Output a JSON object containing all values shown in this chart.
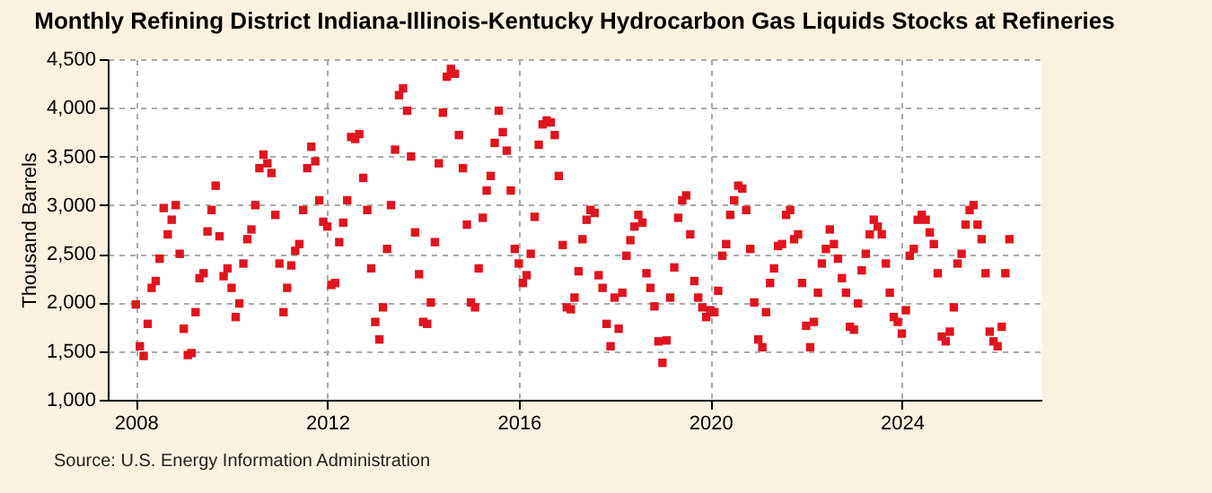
{
  "chart_data": {
    "type": "scatter",
    "title": "Monthly Refining District Indiana-Illinois-Kentucky Hydrocarbon Gas Liquids Stocks at Refineries",
    "ylabel": "Thousand Barrels",
    "annotations": [
      "Source: U.S. Energy Information Administration"
    ],
    "marker": "square",
    "grid": true,
    "xlim": [
      "2007-06",
      "2026-12"
    ],
    "xticks": [
      "2008",
      "2012",
      "2016",
      "2020",
      "2024"
    ],
    "ylim": [
      1000,
      4500
    ],
    "yticks": [
      {
        "value": 1000,
        "label": "1,000"
      },
      {
        "value": 1500,
        "label": "1,500"
      },
      {
        "value": 2000,
        "label": "2,000"
      },
      {
        "value": 2500,
        "label": "2,500"
      },
      {
        "value": 3000,
        "label": "3,000"
      },
      {
        "value": 3500,
        "label": "3,500"
      },
      {
        "value": 4000,
        "label": "4,000"
      },
      {
        "value": 4500,
        "label": "4,500"
      }
    ],
    "x": [
      "2008-01",
      "2008-02",
      "2008-03",
      "2008-04",
      "2008-05",
      "2008-06",
      "2008-07",
      "2008-08",
      "2008-09",
      "2008-10",
      "2008-11",
      "2008-12",
      "2009-01",
      "2009-02",
      "2009-03",
      "2009-04",
      "2009-05",
      "2009-06",
      "2009-07",
      "2009-08",
      "2009-09",
      "2009-10",
      "2009-11",
      "2009-12",
      "2010-01",
      "2010-02",
      "2010-03",
      "2010-04",
      "2010-05",
      "2010-06",
      "2010-07",
      "2010-08",
      "2010-09",
      "2010-10",
      "2010-11",
      "2010-12",
      "2011-01",
      "2011-02",
      "2011-03",
      "2011-04",
      "2011-05",
      "2011-06",
      "2011-07",
      "2011-08",
      "2011-09",
      "2011-10",
      "2011-11",
      "2011-12",
      "2012-01",
      "2012-02",
      "2012-03",
      "2012-04",
      "2012-05",
      "2012-06",
      "2012-07",
      "2012-08",
      "2012-09",
      "2012-10",
      "2012-11",
      "2012-12",
      "2013-01",
      "2013-02",
      "2013-03",
      "2013-04",
      "2013-05",
      "2013-06",
      "2013-07",
      "2013-08",
      "2013-09",
      "2013-10",
      "2013-11",
      "2013-12",
      "2014-01",
      "2014-02",
      "2014-03",
      "2014-04",
      "2014-05",
      "2014-06",
      "2014-07",
      "2014-08",
      "2014-09",
      "2014-10",
      "2014-11",
      "2014-12",
      "2015-01",
      "2015-02",
      "2015-03",
      "2015-04",
      "2015-05",
      "2015-06",
      "2015-07",
      "2015-08",
      "2015-09",
      "2015-10",
      "2015-11",
      "2015-12",
      "2016-01",
      "2016-02",
      "2016-03",
      "2016-04",
      "2016-05",
      "2016-06",
      "2016-07",
      "2016-08",
      "2016-09",
      "2016-10",
      "2016-11",
      "2016-12",
      "2017-01",
      "2017-02",
      "2017-03",
      "2017-04",
      "2017-05",
      "2017-06",
      "2017-07",
      "2017-08",
      "2017-09",
      "2017-10",
      "2017-11",
      "2017-12",
      "2018-01",
      "2018-02",
      "2018-03",
      "2018-04",
      "2018-05",
      "2018-06",
      "2018-07",
      "2018-08",
      "2018-09",
      "2018-10",
      "2018-11",
      "2018-12",
      "2019-01",
      "2019-02",
      "2019-03",
      "2019-04",
      "2019-05",
      "2019-06",
      "2019-07",
      "2019-08",
      "2019-09",
      "2019-10",
      "2019-11",
      "2019-12",
      "2020-01",
      "2020-02",
      "2020-03",
      "2020-04",
      "2020-05",
      "2020-06",
      "2020-07",
      "2020-08",
      "2020-09",
      "2020-10",
      "2020-11",
      "2020-12",
      "2021-01",
      "2021-02",
      "2021-03",
      "2021-04",
      "2021-05",
      "2021-06",
      "2021-07",
      "2021-08",
      "2021-09",
      "2021-10",
      "2021-11",
      "2021-12",
      "2022-01",
      "2022-02",
      "2022-03",
      "2022-04",
      "2022-05",
      "2022-06",
      "2022-07",
      "2022-08",
      "2022-09",
      "2022-10",
      "2022-11",
      "2022-12",
      "2023-01",
      "2023-02",
      "2023-03",
      "2023-04",
      "2023-05",
      "2023-06",
      "2023-07",
      "2023-08",
      "2023-09",
      "2023-10",
      "2023-11",
      "2023-12",
      "2024-01",
      "2024-02",
      "2024-03",
      "2024-04",
      "2024-05",
      "2024-06",
      "2024-07",
      "2024-08",
      "2024-09",
      "2024-10",
      "2024-11",
      "2024-12",
      "2025-01",
      "2025-02",
      "2025-03",
      "2025-04",
      "2025-05",
      "2025-06",
      "2025-07",
      "2025-08",
      "2025-09",
      "2025-10",
      "2025-11",
      "2025-12",
      "2026-01",
      "2026-02",
      "2026-03",
      "2026-04"
    ],
    "series": [
      {
        "color": "#e0141e",
        "values": [
          1980,
          1550,
          1450,
          1780,
          2150,
          2220,
          2450,
          2970,
          2700,
          2850,
          3000,
          2500,
          1730,
          1460,
          1480,
          1900,
          2250,
          2300,
          2730,
          2950,
          3200,
          2680,
          2270,
          2350,
          2150,
          1850,
          1990,
          2400,
          2650,
          2750,
          3000,
          3380,
          3520,
          3430,
          3330,
          2900,
          2400,
          1900,
          2150,
          2380,
          2530,
          2600,
          2950,
          3380,
          3600,
          3450,
          3050,
          2830,
          2780,
          2180,
          2200,
          2620,
          2820,
          3050,
          3700,
          3680,
          3730,
          3280,
          2950,
          2350,
          1800,
          1620,
          1950,
          2550,
          3000,
          3570,
          4130,
          4200,
          3970,
          3500,
          2720,
          2290,
          1800,
          1780,
          2000,
          2620,
          3430,
          3950,
          4320,
          4400,
          4350,
          3720,
          3380,
          2800,
          2000,
          1950,
          2350,
          2870,
          3150,
          3300,
          3640,
          3970,
          3750,
          3560,
          3150,
          2550,
          2400,
          2200,
          2280,
          2500,
          2880,
          3620,
          3830,
          3870,
          3850,
          3720,
          3300,
          2590,
          1950,
          1930,
          2050,
          2320,
          2650,
          2850,
          2950,
          2920,
          2280,
          2150,
          1780,
          1550,
          2050,
          1730,
          2100,
          2480,
          2640,
          2780,
          2900,
          2820,
          2300,
          2150,
          1960,
          1600,
          1380,
          1610,
          2050,
          2360,
          2870,
          3050,
          3100,
          2700,
          2220,
          2050,
          1950,
          1850,
          1920,
          1900,
          2120,
          2480,
          2600,
          2900,
          3050,
          3200,
          3170,
          2950,
          2550,
          2000,
          1620,
          1540,
          1900,
          2200,
          2350,
          2580,
          2600,
          2900,
          2950,
          2650,
          2700,
          2200,
          1760,
          1540,
          1800,
          2100,
          2400,
          2550,
          2750,
          2600,
          2450,
          2250,
          2100,
          1750,
          1720,
          1990,
          2330,
          2500,
          2700,
          2850,
          2780,
          2700,
          2400,
          2100,
          1850,
          1800,
          1680,
          1920,
          2480,
          2550,
          2850,
          2900,
          2850,
          2720,
          2600,
          2300,
          1650,
          1600,
          1700,
          1950,
          2400,
          2500,
          2800,
          2950,
          3000,
          2800,
          2650,
          2300,
          1700,
          1600,
          1550,
          1750,
          2300,
          2650
        ]
      }
    ]
  }
}
